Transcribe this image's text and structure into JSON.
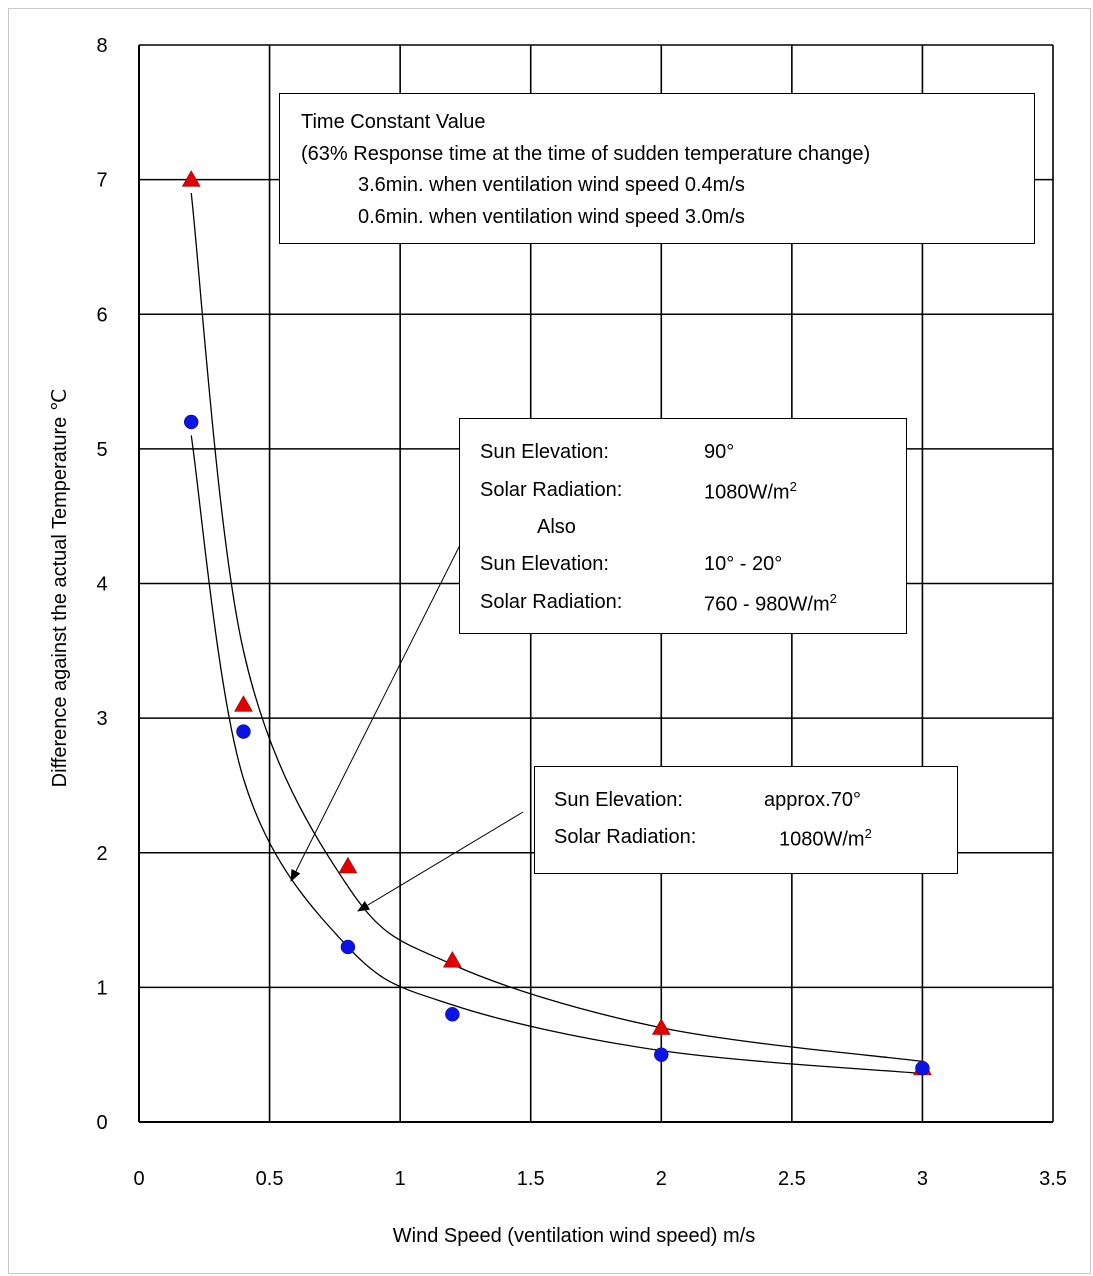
{
  "chart_data": {
    "type": "scatter",
    "xlabel": "Wind Speed (ventilation wind speed) m/s",
    "ylabel": "Difference against the actual Temperature ℃",
    "xlim": [
      0,
      3.5
    ],
    "ylim": [
      0,
      8
    ],
    "xticks": [
      "0",
      "0.5",
      "1",
      "1.5",
      "2",
      "2.5",
      "3",
      "3.5"
    ],
    "yticks": [
      "0",
      "1",
      "2",
      "3",
      "4",
      "5",
      "6",
      "7",
      "8"
    ],
    "grid": true,
    "series": [
      {
        "marker": "triangle",
        "color": "#e00000",
        "x": [
          0.2,
          0.4,
          0.8,
          1.2,
          2.0,
          3.0
        ],
        "y": [
          7.0,
          3.1,
          1.9,
          1.2,
          0.7,
          0.4
        ]
      },
      {
        "marker": "circle",
        "color": "#0a14e6",
        "x": [
          0.2,
          0.4,
          0.8,
          1.2,
          2.0,
          3.0
        ],
        "y": [
          5.2,
          2.9,
          1.3,
          0.8,
          0.5,
          0.4
        ]
      }
    ],
    "fit_curves": [
      {
        "x": [
          0.2,
          0.4,
          0.8,
          1.2,
          2.0,
          3.0
        ],
        "y": [
          6.9,
          3.5,
          1.75,
          1.17,
          0.7,
          0.45
        ]
      },
      {
        "x": [
          0.2,
          0.4,
          0.8,
          1.2,
          2.0,
          3.0
        ],
        "y": [
          5.1,
          2.55,
          1.3,
          0.87,
          0.53,
          0.36
        ]
      }
    ],
    "annotations": {
      "time_constant": {
        "title": "Time Constant Value",
        "line2": "(63% Response time at the time of sudden temperature change)",
        "line3": "3.6min. when ventilation wind speed 0.4m/s",
        "line4": "0.6min. when ventilation wind speed 3.0m/s"
      },
      "sun_box_1": {
        "l1_label": "Sun Elevation:",
        "l1_value": "90°",
        "l2_label": "Solar Radiation:",
        "l2_value": "1080W/m",
        "l2_sup": "2",
        "also": "Also",
        "l3_label": "Sun Elevation:",
        "l3_value": "10° - 20°",
        "l4_label": "Solar Radiation:",
        "l4_value": "760 - 980W/m",
        "l4_sup": "2"
      },
      "sun_box_2": {
        "l1_label": "Sun Elevation:",
        "l1_value": "approx.70°",
        "l2_label": "Solar Radiation:",
        "l2_value": "1080W/m",
        "l2_sup": "2"
      }
    }
  }
}
